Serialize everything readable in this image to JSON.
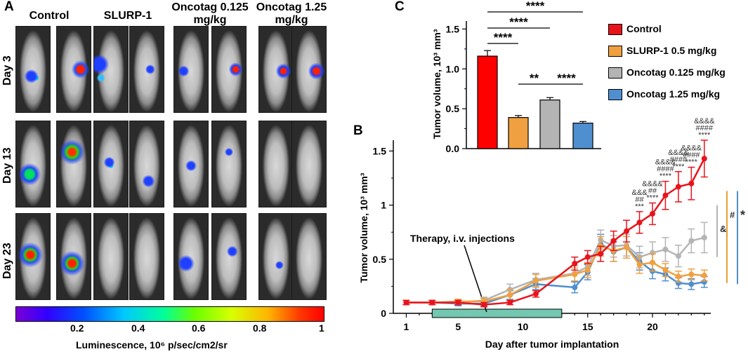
{
  "panels": {
    "a": "A",
    "b": "B",
    "c": "C"
  },
  "panel_a": {
    "columns": [
      {
        "label": "Control"
      },
      {
        "label": "SLURP-1"
      },
      {
        "label": "Oncotag 0.125 mg/kg"
      },
      {
        "label": "Oncotag 1.25 mg/kg"
      }
    ],
    "rows": [
      "Day 3",
      "Day 13",
      "Day 23"
    ],
    "colorbar": {
      "ticks": [
        "0.2",
        "0.4",
        "0.6",
        "0.8",
        "1"
      ],
      "title": "Luminescence, 10⁶ p/sec/cm2/sr"
    }
  },
  "legend": [
    {
      "name": "Control",
      "color": "#e8141c"
    },
    {
      "name": "SLURP-1 0.5 mg/kg",
      "color": "#f0a040"
    },
    {
      "name": "Oncotag 0.125 mg/kg",
      "color": "#b4b4b4"
    },
    {
      "name": "Oncotag 1.25 mg/kg",
      "color": "#4f8fd0"
    }
  ],
  "chart_data": [
    {
      "type": "bar",
      "title": "",
      "ylabel": "Tumor volume, 10³ mm³",
      "ylim": [
        0,
        1.6
      ],
      "yticks": [
        "0.0",
        "0.5",
        "1.0",
        "1.5"
      ],
      "categories": [
        "Control",
        "SLURP-1 0.5 mg/kg",
        "Oncotag 0.125 mg/kg",
        "Oncotag 1.25 mg/kg"
      ],
      "values": [
        1.16,
        0.39,
        0.61,
        0.32
      ],
      "errors": [
        0.07,
        0.025,
        0.03,
        0.02
      ],
      "colors": [
        "#ff0000",
        "#f0a040",
        "#b4b4b4",
        "#4f8fd0"
      ],
      "significance": [
        {
          "from": 0,
          "to": 1,
          "label": "****"
        },
        {
          "from": 0,
          "to": 2,
          "label": "****"
        },
        {
          "from": 0,
          "to": 3,
          "label": "****"
        },
        {
          "from": 1,
          "to": 2,
          "label": "**"
        },
        {
          "from": 2,
          "to": 3,
          "label": "****"
        }
      ]
    },
    {
      "type": "line",
      "xlabel": "Day after tumor implantation",
      "ylabel": "Tumor volume, 10³ mm³",
      "xlim": [
        0,
        24.5
      ],
      "ylim": [
        0,
        1.6
      ],
      "xticks": [
        1,
        5,
        10,
        15,
        20
      ],
      "yticks": [
        "0",
        "0.5",
        "1",
        "1.5"
      ],
      "x": [
        1,
        3,
        5,
        7,
        9,
        11,
        14,
        15,
        16,
        17,
        18,
        19,
        20,
        21,
        22,
        23,
        24
      ],
      "series": [
        {
          "name": "Control",
          "color": "#e8141c",
          "values": [
            0.1,
            0.1,
            0.1,
            0.08,
            0.1,
            0.18,
            0.46,
            0.52,
            0.55,
            0.67,
            0.76,
            0.84,
            0.92,
            1.09,
            1.17,
            1.2,
            1.43
          ],
          "errors": [
            0.02,
            0.02,
            0.02,
            0.02,
            0.02,
            0.03,
            0.06,
            0.06,
            0.07,
            0.09,
            0.1,
            0.1,
            0.1,
            0.13,
            0.14,
            0.15,
            0.17
          ]
        },
        {
          "name": "SLURP-1 0.5 mg/kg",
          "color": "#f0a040",
          "values": [
            0.1,
            0.1,
            0.11,
            0.11,
            0.17,
            0.3,
            0.36,
            0.4,
            0.62,
            0.58,
            0.61,
            0.45,
            0.47,
            0.4,
            0.34,
            0.36,
            0.35
          ],
          "errors": [
            0.02,
            0.02,
            0.02,
            0.03,
            0.05,
            0.06,
            0.06,
            0.07,
            0.09,
            0.1,
            0.1,
            0.08,
            0.08,
            0.06,
            0.05,
            0.05,
            0.05
          ]
        },
        {
          "name": "Oncotag 0.125 mg/kg",
          "color": "#b4b4b4",
          "values": [
            0.1,
            0.1,
            0.1,
            0.12,
            0.22,
            0.31,
            0.37,
            0.43,
            0.68,
            0.62,
            0.63,
            0.52,
            0.56,
            0.59,
            0.53,
            0.67,
            0.7
          ],
          "errors": [
            0.02,
            0.02,
            0.02,
            0.03,
            0.05,
            0.06,
            0.07,
            0.08,
            0.09,
            0.1,
            0.1,
            0.1,
            0.1,
            0.11,
            0.1,
            0.11,
            0.14
          ]
        },
        {
          "name": "Oncotag 1.25 mg/kg",
          "color": "#4f8fd0",
          "values": [
            0.1,
            0.1,
            0.09,
            0.09,
            0.17,
            0.27,
            0.24,
            0.38,
            0.64,
            0.57,
            0.61,
            0.48,
            0.39,
            0.36,
            0.28,
            0.27,
            0.29
          ],
          "errors": [
            0.02,
            0.02,
            0.02,
            0.02,
            0.04,
            0.05,
            0.05,
            0.07,
            0.09,
            0.09,
            0.1,
            0.08,
            0.07,
            0.06,
            0.05,
            0.05,
            0.05
          ]
        }
      ],
      "annotations": {
        "therapy_label": "Therapy, i.v. injections",
        "therapy_days": [
          3,
          13
        ],
        "therapy_color": "#74c7b0",
        "sig_stacks": [
          {
            "day": 19,
            "lines": [
              "&&&",
              "##",
              "***"
            ]
          },
          {
            "day": 20,
            "lines": [
              "&&&&",
              "##",
              "****"
            ]
          },
          {
            "day": 21,
            "lines": [
              "&&&&",
              "####",
              "****"
            ]
          },
          {
            "day": 22,
            "lines": [
              "&&&&",
              "####",
              "****"
            ]
          },
          {
            "day": 23,
            "lines": [
              "&&&&",
              "####",
              "****"
            ]
          },
          {
            "day": 24,
            "lines": [
              "&&&&",
              "####",
              "****"
            ]
          }
        ],
        "group_brackets": [
          {
            "label": "&",
            "color": "#b4b4b4"
          },
          {
            "label": "#",
            "color": "#e8a030"
          },
          {
            "label": "*",
            "color": "#4f8fd0"
          }
        ]
      }
    }
  ]
}
